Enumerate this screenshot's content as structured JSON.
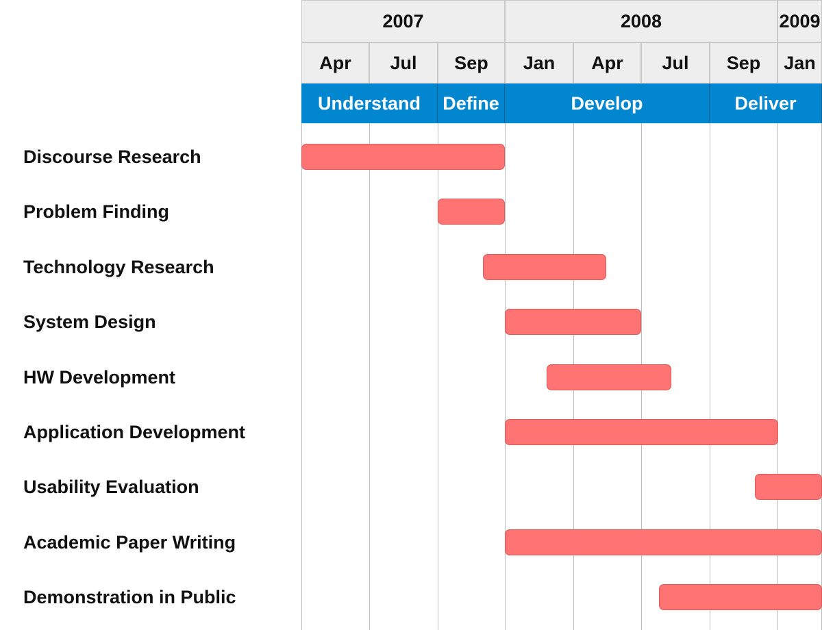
{
  "chart_data": {
    "type": "gantt",
    "timeline": {
      "start": "2007-04-01",
      "end": "2009-03-01",
      "years": [
        {
          "label": "2007",
          "start": "2007-04-01",
          "end": "2007-12-31"
        },
        {
          "label": "2008",
          "start": "2007-12-31",
          "end": "2008-12-31"
        },
        {
          "label": "2009",
          "start": "2008-12-31",
          "end": "2009-03-01"
        }
      ],
      "months": [
        {
          "label": "Apr",
          "start": "2007-04-01",
          "end": "2007-07-01"
        },
        {
          "label": "Jul",
          "start": "2007-07-01",
          "end": "2007-10-01"
        },
        {
          "label": "Sep",
          "start": "2007-10-01",
          "end": "2007-12-31"
        },
        {
          "label": "Jan",
          "start": "2007-12-31",
          "end": "2008-04-01"
        },
        {
          "label": "Apr",
          "start": "2008-04-01",
          "end": "2008-07-01"
        },
        {
          "label": "Jul",
          "start": "2008-07-01",
          "end": "2008-10-01"
        },
        {
          "label": "Sep",
          "start": "2008-10-01",
          "end": "2008-12-31"
        },
        {
          "label": "Jan",
          "start": "2008-12-31",
          "end": "2009-03-01"
        }
      ]
    },
    "phases": [
      {
        "label": "Understand",
        "start": "2007-04-01",
        "end": "2007-10-01"
      },
      {
        "label": "Define",
        "start": "2007-10-01",
        "end": "2007-12-31"
      },
      {
        "label": "Develop",
        "start": "2007-12-31",
        "end": "2008-10-01"
      },
      {
        "label": "Deliver",
        "start": "2008-10-01",
        "end": "2009-03-01"
      }
    ],
    "tasks": [
      {
        "name": "Discourse Research",
        "start": "2007-04-01",
        "end": "2007-12-31"
      },
      {
        "name": "Problem Finding",
        "start": "2007-10-01",
        "end": "2007-12-31"
      },
      {
        "name": "Technology Research",
        "start": "2007-12-01",
        "end": "2008-05-15"
      },
      {
        "name": "System Design",
        "start": "2007-12-31",
        "end": "2008-07-01"
      },
      {
        "name": "HW Development",
        "start": "2008-02-25",
        "end": "2008-08-10"
      },
      {
        "name": "Application Development",
        "start": "2007-12-31",
        "end": "2009-01-01"
      },
      {
        "name": "Usability Evaluation",
        "start": "2008-12-01",
        "end": "2009-03-01"
      },
      {
        "name": "Academic Paper Writing",
        "start": "2007-12-31",
        "end": "2009-03-01"
      },
      {
        "name": "Demonstration in Public",
        "start": "2008-07-25",
        "end": "2009-03-01"
      }
    ],
    "colors": {
      "bar": "#ff7373",
      "phase_band": "#0286d0",
      "header_bg": "#eeeeee",
      "gridline": "#bdbdbd"
    }
  }
}
